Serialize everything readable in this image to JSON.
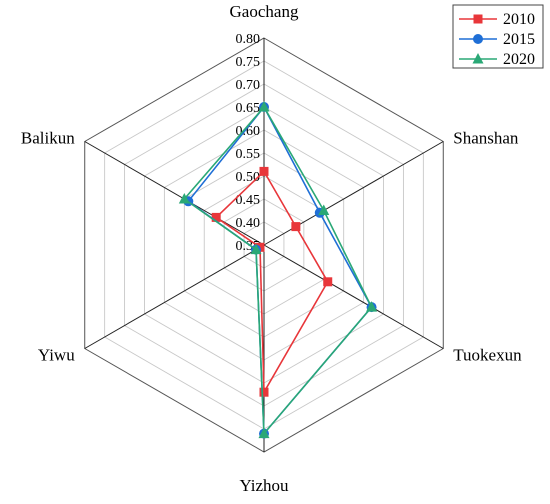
{
  "chart_data": {
    "type": "radar",
    "axes": [
      "Gaochang",
      "Shanshan",
      "Tuokexun",
      "Yizhou",
      "Yiwu",
      "Balikun"
    ],
    "r_ticks": [
      "0.80",
      "0.75",
      "0.70",
      "0.65",
      "0.60",
      "0.55",
      "0.50",
      "0.45",
      "0.40",
      "0.35"
    ],
    "r_range": [
      0.35,
      0.8
    ],
    "grid": true,
    "legend_position": "top-right",
    "series": [
      {
        "name": "2010",
        "color": "#e8363a",
        "marker": "square",
        "values": [
          0.51,
          0.43,
          0.51,
          0.67,
          0.36,
          0.47
        ]
      },
      {
        "name": "2015",
        "color": "#1f6fd6",
        "marker": "circle",
        "values": [
          0.65,
          0.49,
          0.62,
          0.76,
          0.37,
          0.54
        ]
      },
      {
        "name": "2020",
        "color": "#2aa876",
        "marker": "triangle",
        "values": [
          0.65,
          0.5,
          0.62,
          0.76,
          0.37,
          0.55
        ]
      }
    ]
  }
}
